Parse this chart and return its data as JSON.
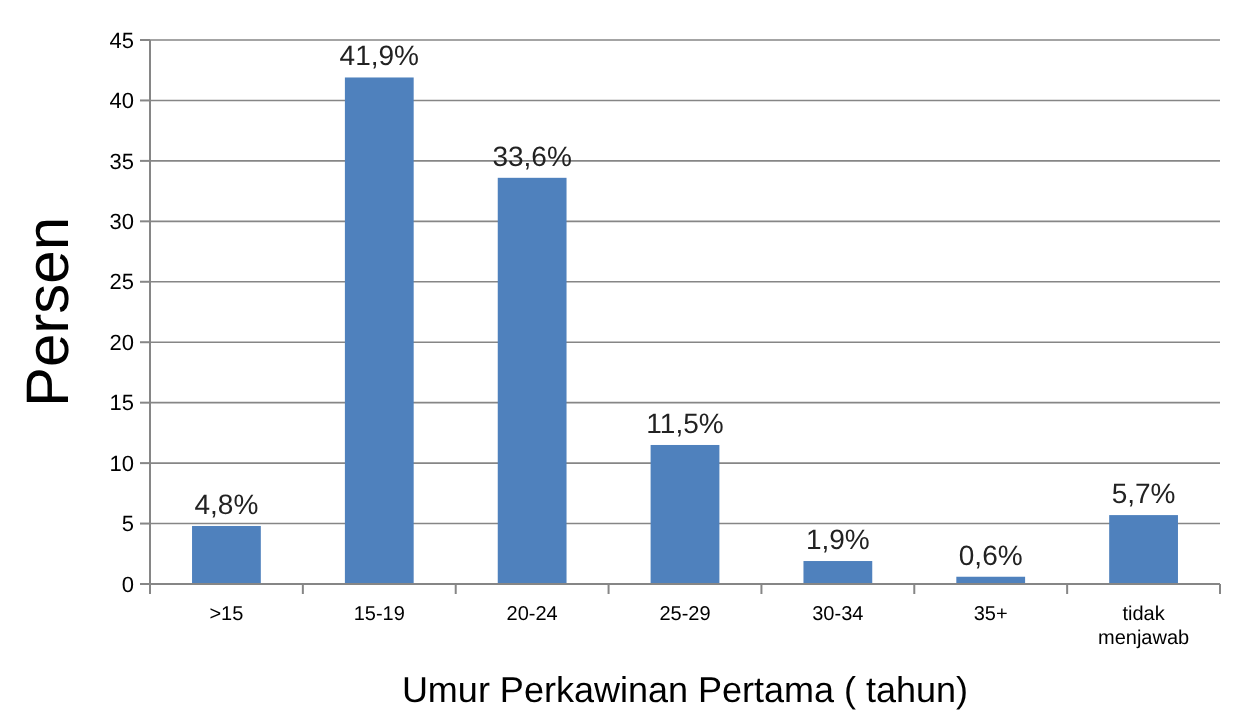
{
  "chart_data": {
    "type": "bar",
    "xlabel": "Umur Perkawinan Pertama ( tahun)",
    "ylabel": "Persen",
    "categories": [
      ">15",
      "15-19",
      "20-24",
      "25-29",
      "30-34",
      "35+",
      "tidak menjawab"
    ],
    "values": [
      4.8,
      41.9,
      33.6,
      11.5,
      1.9,
      0.6,
      5.7
    ],
    "value_labels": [
      "4,8%",
      "41,9%",
      "33,6%",
      "11,5%",
      "1,9%",
      "0,6%",
      "5,7%"
    ],
    "color": "#4f81bd",
    "ylim": [
      0,
      45
    ],
    "yticks": [
      0,
      5,
      10,
      15,
      20,
      25,
      30,
      35,
      40,
      45
    ],
    "grid": "y"
  }
}
